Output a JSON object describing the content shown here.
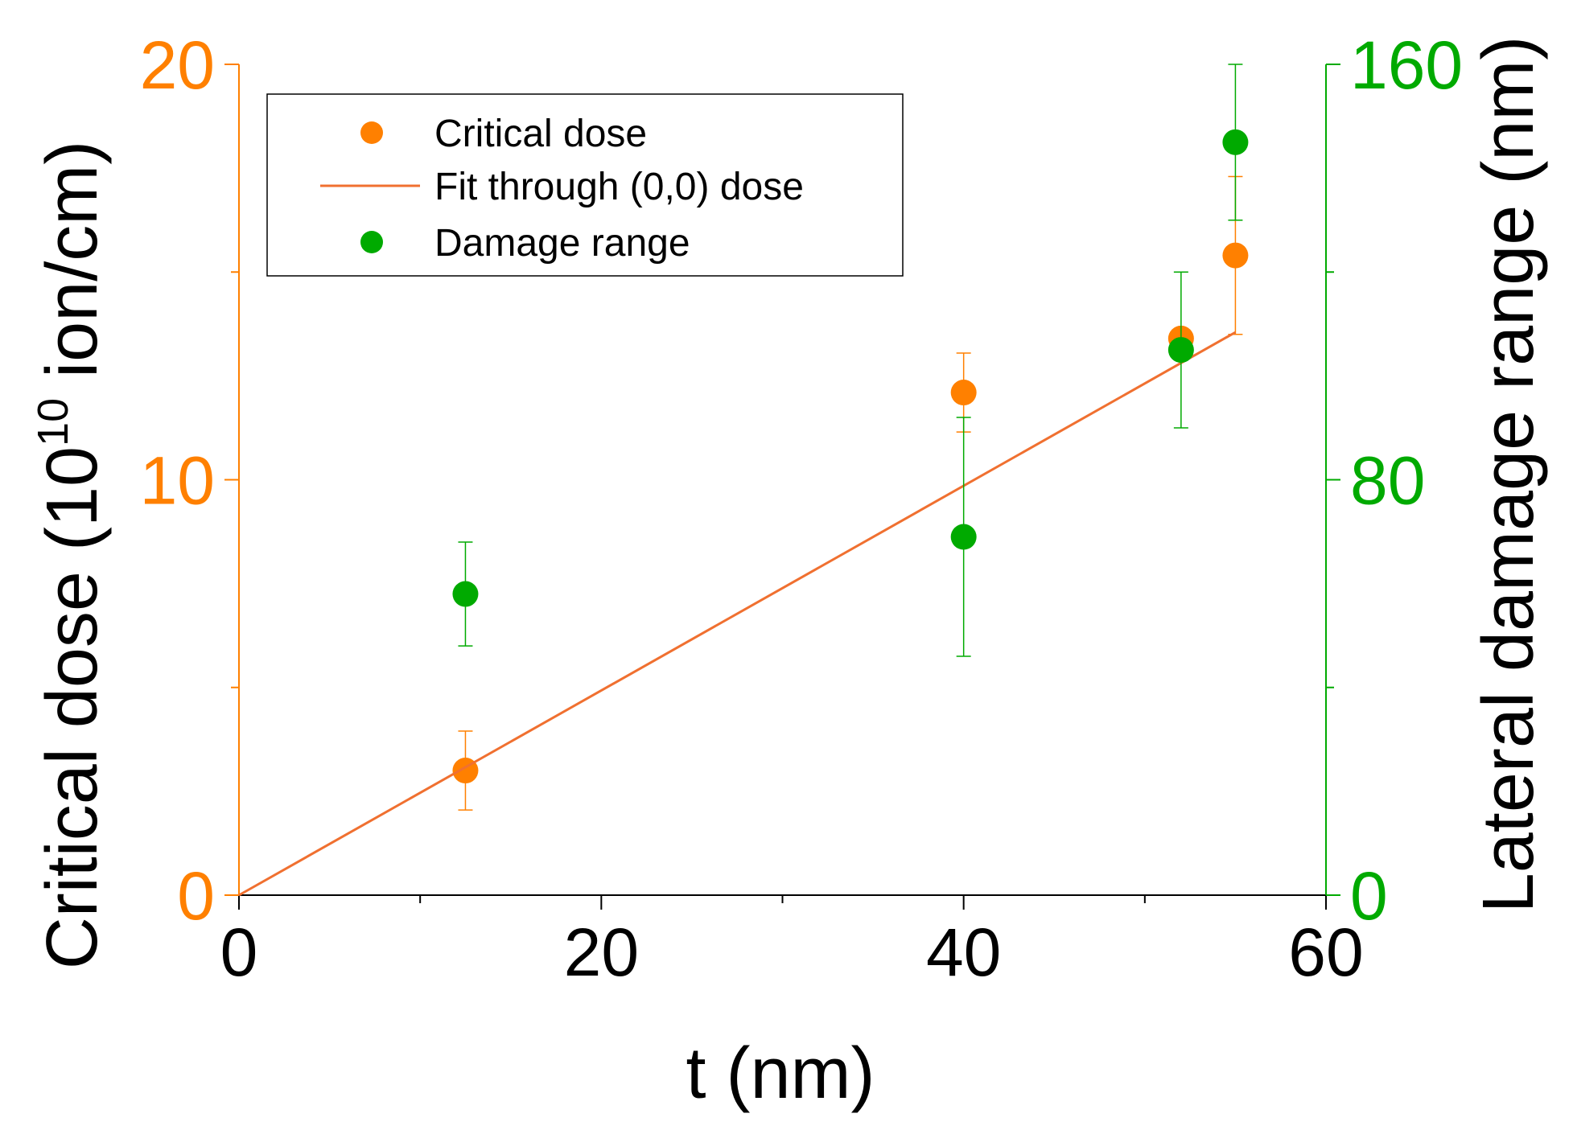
{
  "chart_data": {
    "type": "scatter",
    "xlabel": "t (nm)",
    "xlim": [
      0,
      60
    ],
    "x_ticks": [
      "0",
      "20",
      "40",
      "60"
    ],
    "y_left": {
      "label_main": "Critical dose (10",
      "label_sup": "10",
      "label_tail": " ion/cm)",
      "lim": [
        0,
        20
      ],
      "ticks": [
        "0",
        "10",
        "20"
      ],
      "color": "#ff8000"
    },
    "y_right": {
      "label": "Lateral damage range (nm)",
      "lim": [
        0,
        160
      ],
      "ticks": [
        "0",
        "80",
        "160"
      ],
      "color": "#00aa00"
    },
    "legend": {
      "position": "top-left",
      "entries": [
        "Critical dose",
        "Fit through (0,0) dose",
        "Damage range"
      ]
    },
    "series": [
      {
        "name": "Critical dose",
        "axis": "left",
        "color": "#ff8000",
        "points": [
          {
            "x": 12.5,
            "y": 3.0,
            "err": 0.95
          },
          {
            "x": 40,
            "y": 12.1,
            "err": 0.95
          },
          {
            "x": 52,
            "y": 13.4,
            "err": 0.0
          },
          {
            "x": 55,
            "y": 15.4,
            "err": 1.9
          }
        ]
      },
      {
        "name": "Fit through (0,0) dose",
        "axis": "left",
        "color": "#f07030",
        "line": [
          [
            0,
            0
          ],
          [
            55,
            13.55
          ]
        ]
      },
      {
        "name": "Damage range",
        "axis": "right",
        "color": "#00aa00",
        "points": [
          {
            "x": 12.5,
            "y": 58,
            "err": 10
          },
          {
            "x": 40,
            "y": 69,
            "err": 23
          },
          {
            "x": 52,
            "y": 105,
            "err": 15
          },
          {
            "x": 55,
            "y": 145,
            "err": 15
          }
        ]
      }
    ]
  }
}
